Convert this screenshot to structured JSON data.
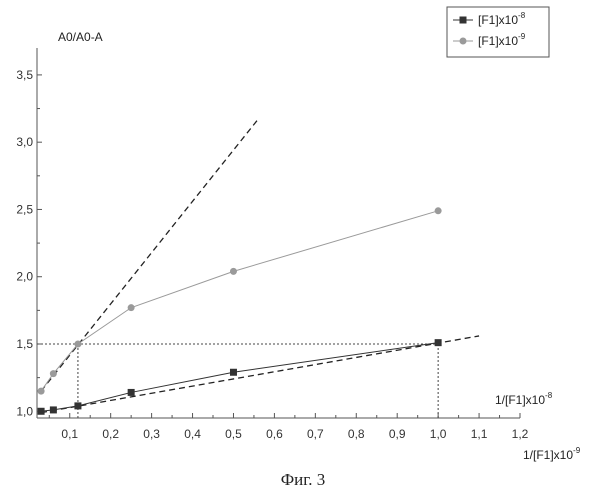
{
  "chart_data": {
    "type": "line",
    "title": "",
    "ylabel": "A0/A0-A",
    "xlabel": "1/[F1]x10",
    "xlabel_exp": "-9",
    "xlabel_secondary": "1/[F1]x10",
    "xlabel_secondary_exp": "-8",
    "xlim": [
      0.02,
      1.2
    ],
    "ylim": [
      0.95,
      3.7
    ],
    "x_ticks": [
      0.1,
      0.2,
      0.3,
      0.4,
      0.5,
      0.6,
      0.7,
      0.8,
      0.9,
      1.0,
      1.1,
      1.2
    ],
    "x_tick_labels": [
      "0,1",
      "0,2",
      "0,3",
      "0,4",
      "0,5",
      "0,6",
      "0,7",
      "0,8",
      "0,9",
      "1,0",
      "1,1",
      "1,2"
    ],
    "y_ticks": [
      1.0,
      1.5,
      2.0,
      2.5,
      3.0,
      3.5
    ],
    "y_tick_labels": [
      "1,0",
      "1,5",
      "2,0",
      "2,5",
      "3,0",
      "3,5"
    ],
    "series": [
      {
        "name": "[F1]x10",
        "name_exp": "-8",
        "color": "#333333",
        "marker": "square",
        "x": [
          0.03,
          0.06,
          0.12,
          0.25,
          0.5,
          1.0
        ],
        "y": [
          1.0,
          1.01,
          1.04,
          1.14,
          1.29,
          1.51
        ]
      },
      {
        "name": "[F1]x10",
        "name_exp": "-9",
        "color": "#9a9a9a",
        "marker": "circle",
        "x": [
          0.03,
          0.06,
          0.12,
          0.25,
          0.5,
          1.0
        ],
        "y": [
          1.15,
          1.28,
          1.5,
          1.77,
          2.04,
          2.49
        ]
      }
    ],
    "trend_lines": [
      {
        "x": [
          0.03,
          1.1
        ],
        "y": [
          0.99,
          1.56
        ]
      },
      {
        "x": [
          0.03,
          0.56
        ],
        "y": [
          1.15,
          3.17
        ]
      }
    ],
    "guide_lines": {
      "level_y": 1.5,
      "from_x": 0.02,
      "verticals_x": [
        0.12,
        1.0
      ]
    },
    "legend_position": "top-right",
    "caption": "Фиг. 3"
  }
}
